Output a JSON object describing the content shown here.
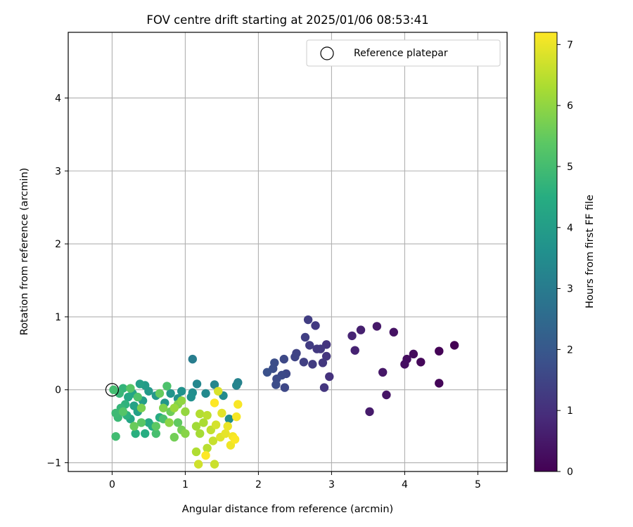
{
  "chart_data": {
    "type": "scatter",
    "title": "FOV centre drift starting at 2025/01/06 08:53:41",
    "xlabel": "Angular distance from reference (arcmin)",
    "ylabel": "Rotation from reference (arcmin)",
    "xlim": [
      -0.6,
      5.4
    ],
    "ylim": [
      -1.12,
      4.9
    ],
    "x_ticks": [
      0,
      1,
      2,
      3,
      4,
      5
    ],
    "y_ticks": [
      -1,
      0,
      1,
      2,
      3,
      4
    ],
    "grid": true,
    "legend": {
      "position": "top-right",
      "entries": [
        "Reference platepar"
      ]
    },
    "colorbar": {
      "label": "Hours from first FF file",
      "min": 0,
      "max": 7.2,
      "ticks": [
        0,
        1,
        2,
        3,
        4,
        5,
        6,
        7
      ],
      "colormap": "viridis"
    },
    "reference_point": {
      "x": 0,
      "y": 0,
      "label": "Reference platepar"
    },
    "series": [
      {
        "points": [
          {
            "x": 4.68,
            "y": 0.61,
            "h": 0.0
          },
          {
            "x": 4.47,
            "y": 0.53,
            "h": 0.05
          },
          {
            "x": 4.47,
            "y": 0.09,
            "h": 0.1
          },
          {
            "x": 4.22,
            "y": 0.38,
            "h": 0.15
          },
          {
            "x": 4.12,
            "y": 0.49,
            "h": 0.2
          },
          {
            "x": 4.03,
            "y": 0.42,
            "h": 0.25
          },
          {
            "x": 4.0,
            "y": 0.35,
            "h": 0.3
          },
          {
            "x": 3.85,
            "y": 0.79,
            "h": 0.35
          },
          {
            "x": 3.75,
            "y": -0.07,
            "h": 0.4
          },
          {
            "x": 3.7,
            "y": 0.24,
            "h": 0.45
          },
          {
            "x": 3.62,
            "y": 0.87,
            "h": 0.5
          },
          {
            "x": 3.52,
            "y": -0.3,
            "h": 0.55
          },
          {
            "x": 3.4,
            "y": 0.82,
            "h": 0.65
          },
          {
            "x": 3.32,
            "y": 0.54,
            "h": 0.7
          },
          {
            "x": 3.28,
            "y": 0.74,
            "h": 0.75
          },
          {
            "x": 2.97,
            "y": 0.18,
            "h": 1.05
          },
          {
            "x": 2.93,
            "y": 0.62,
            "h": 1.1
          },
          {
            "x": 2.93,
            "y": 0.46,
            "h": 1.12
          },
          {
            "x": 2.9,
            "y": 0.03,
            "h": 1.15
          },
          {
            "x": 2.88,
            "y": 0.37,
            "h": 1.18
          },
          {
            "x": 2.85,
            "y": 0.56,
            "h": 1.2
          },
          {
            "x": 2.8,
            "y": 0.56,
            "h": 1.22
          },
          {
            "x": 2.78,
            "y": 0.88,
            "h": 1.25
          },
          {
            "x": 2.74,
            "y": 0.35,
            "h": 1.28
          },
          {
            "x": 2.7,
            "y": 0.61,
            "h": 1.3
          },
          {
            "x": 2.68,
            "y": 0.96,
            "h": 1.32
          },
          {
            "x": 2.64,
            "y": 0.72,
            "h": 1.35
          },
          {
            "x": 2.62,
            "y": 0.38,
            "h": 1.38
          },
          {
            "x": 2.52,
            "y": 0.5,
            "h": 1.45
          },
          {
            "x": 2.5,
            "y": 0.45,
            "h": 1.48
          },
          {
            "x": 2.38,
            "y": 0.22,
            "h": 1.55
          },
          {
            "x": 2.36,
            "y": 0.03,
            "h": 1.58
          },
          {
            "x": 2.35,
            "y": 0.42,
            "h": 1.6
          },
          {
            "x": 2.32,
            "y": 0.2,
            "h": 1.62
          },
          {
            "x": 2.25,
            "y": 0.15,
            "h": 1.68
          },
          {
            "x": 2.24,
            "y": 0.07,
            "h": 1.7
          },
          {
            "x": 2.22,
            "y": 0.37,
            "h": 1.72
          },
          {
            "x": 2.2,
            "y": 0.29,
            "h": 1.75
          },
          {
            "x": 2.12,
            "y": 0.24,
            "h": 1.8
          },
          {
            "x": 1.1,
            "y": 0.42,
            "h": 3.05
          },
          {
            "x": 1.72,
            "y": 0.1,
            "h": 3.2
          },
          {
            "x": 1.7,
            "y": 0.06,
            "h": 3.25
          },
          {
            "x": 1.4,
            "y": 0.07,
            "h": 3.3
          },
          {
            "x": 1.16,
            "y": 0.08,
            "h": 3.35
          },
          {
            "x": 1.28,
            "y": -0.05,
            "h": 3.4
          },
          {
            "x": 1.52,
            "y": -0.08,
            "h": 3.45
          },
          {
            "x": 1.6,
            "y": -0.4,
            "h": 3.5
          },
          {
            "x": 1.1,
            "y": -0.04,
            "h": 3.55
          },
          {
            "x": 1.08,
            "y": -0.1,
            "h": 3.6
          },
          {
            "x": 0.95,
            "y": -0.02,
            "h": 3.65
          },
          {
            "x": 0.9,
            "y": -0.12,
            "h": 3.7
          },
          {
            "x": 0.8,
            "y": -0.05,
            "h": 3.75
          },
          {
            "x": 0.72,
            "y": -0.18,
            "h": 3.8
          },
          {
            "x": 0.6,
            "y": -0.08,
            "h": 3.85
          },
          {
            "x": 0.5,
            "y": -0.02,
            "h": 3.9
          },
          {
            "x": 0.45,
            "y": 0.06,
            "h": 3.95
          },
          {
            "x": 0.42,
            "y": -0.15,
            "h": 4.0
          },
          {
            "x": 0.38,
            "y": 0.08,
            "h": 4.05
          },
          {
            "x": 0.35,
            "y": -0.3,
            "h": 4.1
          },
          {
            "x": 0.3,
            "y": -0.22,
            "h": 4.15
          },
          {
            "x": 0.28,
            "y": -0.05,
            "h": 4.2
          },
          {
            "x": 0.25,
            "y": -0.4,
            "h": 4.25
          },
          {
            "x": 0.22,
            "y": -0.1,
            "h": 4.3
          },
          {
            "x": 0.5,
            "y": -0.45,
            "h": 4.35
          },
          {
            "x": 0.55,
            "y": -0.5,
            "h": 4.4
          },
          {
            "x": 0.65,
            "y": -0.38,
            "h": 4.45
          },
          {
            "x": 0.45,
            "y": -0.6,
            "h": 4.5
          },
          {
            "x": 0.32,
            "y": -0.6,
            "h": 4.55
          },
          {
            "x": 0.2,
            "y": -0.35,
            "h": 4.6
          },
          {
            "x": 0.18,
            "y": -0.2,
            "h": 4.65
          },
          {
            "x": 0.15,
            "y": 0.02,
            "h": 4.7
          },
          {
            "x": 0.12,
            "y": -0.25,
            "h": 4.75
          },
          {
            "x": 0.1,
            "y": -0.05,
            "h": 4.8
          },
          {
            "x": 0.08,
            "y": -0.38,
            "h": 4.85
          },
          {
            "x": 0.05,
            "y": -0.32,
            "h": 4.9
          },
          {
            "x": 0.05,
            "y": -0.64,
            "h": 4.95
          },
          {
            "x": 0.02,
            "y": 0.0,
            "h": 5.0
          },
          {
            "x": 0.6,
            "y": -0.6,
            "h": 5.05
          },
          {
            "x": 0.7,
            "y": -0.4,
            "h": 5.1
          },
          {
            "x": 0.75,
            "y": 0.05,
            "h": 5.15
          },
          {
            "x": 0.35,
            "y": -0.1,
            "h": 5.2
          },
          {
            "x": 0.15,
            "y": -0.3,
            "h": 5.25
          },
          {
            "x": 0.25,
            "y": 0.02,
            "h": 5.3
          },
          {
            "x": 0.4,
            "y": -0.45,
            "h": 5.35
          },
          {
            "x": 0.6,
            "y": -0.5,
            "h": 5.4
          },
          {
            "x": 0.9,
            "y": -0.45,
            "h": 5.45
          },
          {
            "x": 0.65,
            "y": -0.05,
            "h": 5.5
          },
          {
            "x": 0.3,
            "y": -0.5,
            "h": 5.55
          },
          {
            "x": 0.8,
            "y": -0.3,
            "h": 5.6
          },
          {
            "x": 0.85,
            "y": -0.65,
            "h": 5.65
          },
          {
            "x": 0.95,
            "y": -0.55,
            "h": 5.7
          },
          {
            "x": 0.4,
            "y": -0.25,
            "h": 5.75
          },
          {
            "x": 0.7,
            "y": -0.25,
            "h": 5.8
          },
          {
            "x": 0.9,
            "y": -0.2,
            "h": 5.85
          },
          {
            "x": 1.0,
            "y": -0.6,
            "h": 5.9
          },
          {
            "x": 0.78,
            "y": -0.45,
            "h": 5.95
          },
          {
            "x": 0.95,
            "y": -0.15,
            "h": 6.0
          },
          {
            "x": 1.0,
            "y": -0.3,
            "h": 6.05
          },
          {
            "x": 0.85,
            "y": -0.25,
            "h": 6.1
          },
          {
            "x": 1.15,
            "y": -0.5,
            "h": 6.2
          },
          {
            "x": 1.2,
            "y": -0.6,
            "h": 6.25
          },
          {
            "x": 1.25,
            "y": -0.45,
            "h": 6.3
          },
          {
            "x": 1.15,
            "y": -0.85,
            "h": 6.35
          },
          {
            "x": 1.2,
            "y": -0.33,
            "h": 6.4
          },
          {
            "x": 1.3,
            "y": -0.8,
            "h": 6.45
          },
          {
            "x": 1.3,
            "y": -0.35,
            "h": 6.5
          },
          {
            "x": 1.35,
            "y": -0.55,
            "h": 6.55
          },
          {
            "x": 1.38,
            "y": -0.7,
            "h": 6.6
          },
          {
            "x": 1.4,
            "y": -1.02,
            "h": 6.65
          },
          {
            "x": 1.18,
            "y": -1.02,
            "h": 6.7
          },
          {
            "x": 1.42,
            "y": -0.48,
            "h": 6.75
          },
          {
            "x": 1.45,
            "y": -0.02,
            "h": 6.8
          },
          {
            "x": 1.48,
            "y": -0.65,
            "h": 6.85
          },
          {
            "x": 1.5,
            "y": -0.32,
            "h": 6.9
          },
          {
            "x": 1.55,
            "y": -0.6,
            "h": 6.95
          },
          {
            "x": 1.58,
            "y": -0.5,
            "h": 7.0
          },
          {
            "x": 1.62,
            "y": -0.76,
            "h": 7.05
          },
          {
            "x": 1.65,
            "y": -0.64,
            "h": 7.1
          },
          {
            "x": 1.7,
            "y": -0.37,
            "h": 7.12
          },
          {
            "x": 1.72,
            "y": -0.2,
            "h": 7.15
          },
          {
            "x": 1.68,
            "y": -0.68,
            "h": 7.18
          },
          {
            "x": 1.4,
            "y": -0.18,
            "h": 7.2
          },
          {
            "x": 1.28,
            "y": -0.9,
            "h": 7.2
          }
        ]
      }
    ]
  }
}
